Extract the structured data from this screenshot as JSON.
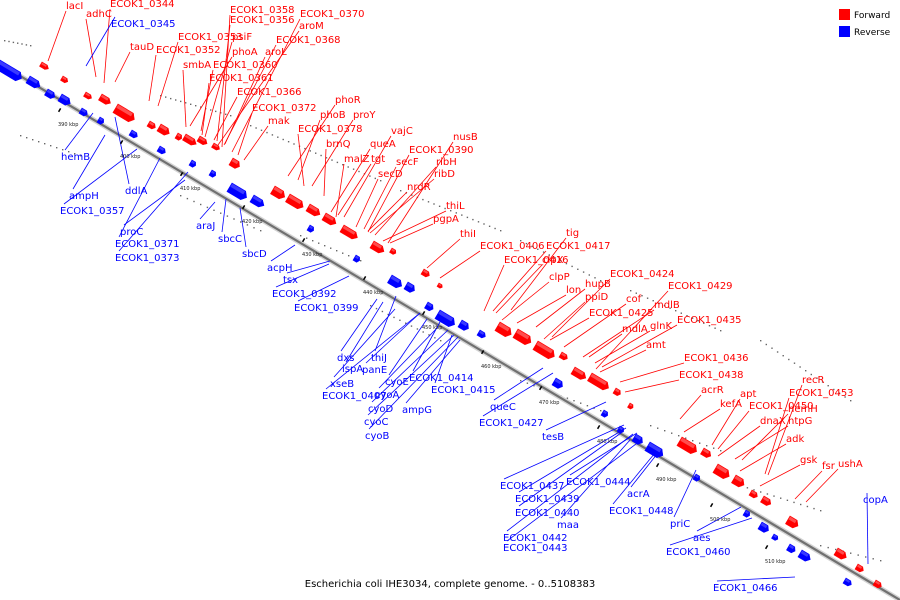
{
  "caption": "Escherichia coli IHE3034, complete genome. - 0..5108383",
  "legend": {
    "forward": "Forward",
    "reverse": "Reverse"
  },
  "colors": {
    "forward": "#ff0000",
    "reverse": "#0000ff",
    "backbone": "#888888"
  },
  "ticks": [
    "390 kbp",
    "400 kbp",
    "410 kbp",
    "420 kbp",
    "430 kbp",
    "440 kbp",
    "450 kbp",
    "460 kbp",
    "470 kbp",
    "480 kbp",
    "490 kbp",
    "500 kbp",
    "510 kbp"
  ],
  "forward_labels": [
    "lacI",
    "adhC",
    "ECOK1_0344",
    "tauD",
    "ECOK1_0352",
    "ECOK1_0353",
    "ECOK1_0356",
    "ECOK1_0358",
    "ECOK1_0370",
    "aroM",
    "ECOK1_0368",
    "psiF",
    "aroL",
    "phoA",
    "smbA",
    "ECOK1_0360",
    "ECOK1_0361",
    "ECOK1_0366",
    "ECOK1_0372",
    "mak",
    "phoR",
    "phoB",
    "proY",
    "ECOK1_0378",
    "brnQ",
    "vajC",
    "nusB",
    "queA",
    "malZ",
    "tgt",
    "ECOK1_0390",
    "secF",
    "ribH",
    "secD",
    "ribD",
    "nrdR",
    "thiL",
    "pgpA",
    "thiI",
    "ECOK1_0406",
    "tig",
    "ECOK1_0417",
    "ECOK1_0416",
    "clpX",
    "clpP",
    "lon",
    "hupB",
    "ECOK1_0424",
    "ppiD",
    "ECOK1_0429",
    "ECOK1_0425",
    "cof",
    "mdlB",
    "mdlA",
    "glnK",
    "ECOK1_0435",
    "amt",
    "ECOK1_0436",
    "ECOK1_0438",
    "acrR",
    "kefA",
    "apt",
    "recR",
    "ECOK1_0453",
    "ECOK1_0450",
    "dnaX",
    "htpG",
    "hemH",
    "adk",
    "gsk",
    "fsr",
    "ushA"
  ],
  "reverse_labels": [
    "ECOK1_0345",
    "hemB",
    "ampH",
    "ddlA",
    "ECOK1_0357",
    "proC",
    "araJ",
    "ECOK1_0371",
    "ECOK1_0373",
    "sbcC",
    "sbcD",
    "acpH",
    "tsx",
    "ECOK1_0392",
    "ECOK1_0399",
    "dxs",
    "ispA",
    "thiJ",
    "xseB",
    "panE",
    "ECOK1_0407",
    "cyoE",
    "ECOK1_0414",
    "cyoA",
    "ECOK1_0415",
    "cyoD",
    "ampG",
    "cyoC",
    "cyoB",
    "queC",
    "ECOK1_0427",
    "tesB",
    "ECOK1_0437",
    "ECOK1_0444",
    "ECOK1_0439",
    "ECOK1_0440",
    "maa",
    "ECOK1_0442",
    "ECOK1_0443",
    "acrA",
    "ECOK1_0448",
    "priC",
    "aes",
    "ECOK1_0460",
    "copA",
    "ECOK1_0466"
  ]
}
